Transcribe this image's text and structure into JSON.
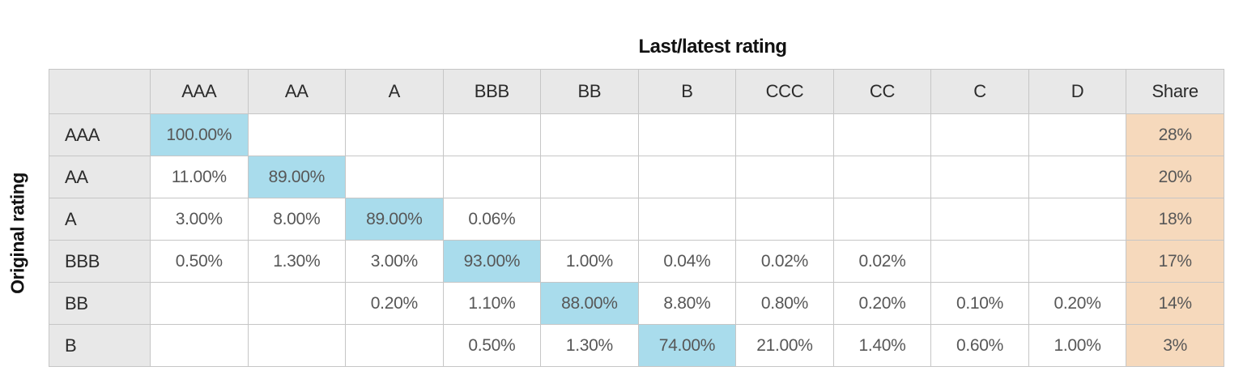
{
  "title": "Last/latest rating",
  "left_axis_label": "Original rating",
  "colors": {
    "highlight_blue": "#a9dcec",
    "share_peach": "#f6d9bc",
    "header_gray": "#e8e8e8",
    "grid_line": "#c6c6c6",
    "value_text": "#575757",
    "header_text": "#2b2b2b"
  },
  "chart_data": {
    "type": "table",
    "title": "Last/latest rating",
    "row_axis_label": "Original rating",
    "columns": [
      "AAA",
      "AA",
      "A",
      "BBB",
      "BB",
      "B",
      "CCC",
      "CC",
      "C",
      "D",
      "Share"
    ],
    "rows": [
      {
        "label": "AAA",
        "cells": [
          "100.00%",
          "",
          "",
          "",
          "",
          "",
          "",
          "",
          "",
          ""
        ],
        "share": "28%",
        "highlight_col": 0
      },
      {
        "label": "AA",
        "cells": [
          "11.00%",
          "89.00%",
          "",
          "",
          "",
          "",
          "",
          "",
          "",
          ""
        ],
        "share": "20%",
        "highlight_col": 1
      },
      {
        "label": "A",
        "cells": [
          "3.00%",
          "8.00%",
          "89.00%",
          "0.06%",
          "",
          "",
          "",
          "",
          "",
          ""
        ],
        "share": "18%",
        "highlight_col": 2
      },
      {
        "label": "BBB",
        "cells": [
          "0.50%",
          "1.30%",
          "3.00%",
          "93.00%",
          "1.00%",
          "0.04%",
          "0.02%",
          "0.02%",
          "",
          ""
        ],
        "share": "17%",
        "highlight_col": 3
      },
      {
        "label": "BB",
        "cells": [
          "",
          "",
          "0.20%",
          "1.10%",
          "88.00%",
          "8.80%",
          "0.80%",
          "0.20%",
          "0.10%",
          "0.20%"
        ],
        "share": "14%",
        "highlight_col": 4
      },
      {
        "label": "B",
        "cells": [
          "",
          "",
          "",
          "0.50%",
          "1.30%",
          "74.00%",
          "21.00%",
          "1.40%",
          "0.60%",
          "1.00%"
        ],
        "share": "3%",
        "highlight_col": 5
      }
    ]
  }
}
